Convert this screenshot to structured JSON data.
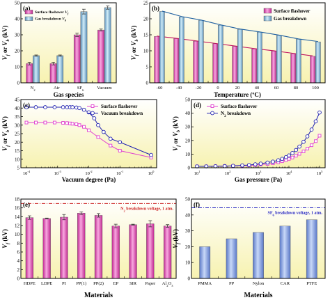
{
  "chart_data": [
    {
      "id": "a",
      "panel_label": "(a)",
      "type": "bar",
      "xlabel": "Gas species",
      "ylabel": "V_f or V_b (kV)",
      "ylim": [
        0,
        50
      ],
      "yticks": [
        0,
        10,
        20,
        30,
        40,
        50
      ],
      "categories": [
        "N₂",
        "Air",
        "SF₆",
        "Vacuum"
      ],
      "series": [
        {
          "name": "Surface flashover V_f",
          "values": [
            12,
            12,
            30,
            33
          ],
          "errors": [
            0.8,
            0.8,
            1.0,
            0.6
          ],
          "color": "#e060b8"
        },
        {
          "name": "Gas breakdown V_b",
          "values": [
            17,
            17,
            44.5,
            47
          ],
          "errors": [
            0.4,
            0.4,
            1.5,
            1.0
          ],
          "color": "#7fb8d8"
        }
      ],
      "legend": "top-left",
      "background": "yellow-gradient"
    },
    {
      "id": "b",
      "panel_label": "(b)",
      "type": "bar",
      "xlabel": "Temperature (ºC)",
      "ylabel": "V_f or V_b (kV)",
      "ylim": [
        0,
        25
      ],
      "yticks": [
        0,
        5,
        10,
        15,
        20,
        25
      ],
      "categories": [
        "-60",
        "-40",
        "-20",
        "0",
        "20",
        "40",
        "60",
        "80",
        "100"
      ],
      "series": [
        {
          "name": "Surface flashover",
          "values": [
            14.5,
            13.8,
            13.0,
            12.2,
            11.4,
            10.6,
            9.9,
            9.1,
            8.3
          ],
          "color": "#e060b8",
          "trend_line": true
        },
        {
          "name": "Gas breakdown",
          "values": [
            22.3,
            20.6,
            19.5,
            18.0,
            16.7,
            15.8,
            14.8,
            13.6,
            12.8
          ],
          "color": "#7fb8d8",
          "trend_line": true
        }
      ],
      "legend": "top-right",
      "background": "yellow-gradient"
    },
    {
      "id": "c",
      "panel_label": "(c)",
      "type": "line",
      "xscale": "log",
      "xlabel": "Vacuum degree (Pa)",
      "ylabel": "V_f or V_b (kV)",
      "xlim": [
        0.0001,
        1
      ],
      "ylim": [
        5,
        45
      ],
      "yticks": [
        5,
        10,
        15,
        20,
        25,
        30,
        35,
        40,
        45
      ],
      "xtick_labels": [
        "10⁻⁴",
        "10⁻³",
        "10⁻²",
        "10⁻¹",
        "10⁰"
      ],
      "series": [
        {
          "name": "Surface flashover",
          "marker": "square",
          "color": "#e040d0",
          "x": [
            0.0001,
            0.0002,
            0.0004,
            0.0008,
            0.0015,
            0.002,
            0.0025,
            0.003,
            0.004,
            0.005,
            0.007,
            0.01,
            0.02,
            0.05,
            0.1,
            1
          ],
          "y": [
            31.5,
            31.5,
            31.5,
            31.5,
            31.3,
            31.2,
            31.0,
            30.8,
            30.5,
            30.0,
            29.0,
            27.0,
            23.0,
            18.0,
            15.0,
            11.0
          ]
        },
        {
          "name": "Vacuum breakdown",
          "marker": "circle",
          "color": "#2020b0",
          "x": [
            0.0001,
            0.0002,
            0.0004,
            0.0008,
            0.0015,
            0.002,
            0.0025,
            0.003,
            0.004,
            0.005,
            0.007,
            0.01,
            0.015,
            0.02,
            0.03,
            0.05,
            0.1,
            1
          ],
          "y": [
            40.5,
            40.5,
            40.5,
            40.5,
            40.5,
            40.5,
            40.5,
            40.5,
            40.3,
            40.0,
            39.0,
            37.5,
            34.0,
            30.0,
            26.0,
            22.0,
            20.0,
            12.5
          ]
        }
      ],
      "legend": "top-right",
      "background": "yellow-gradient"
    },
    {
      "id": "d",
      "panel_label": "(d)",
      "type": "line",
      "xscale": "log",
      "xlabel": "Gas pressure (Pa)",
      "ylabel": "V_f or V_b (kV)",
      "xlim": [
        10,
        100000
      ],
      "ylim": [
        0,
        50
      ],
      "yticks": [
        0,
        10,
        20,
        30,
        40,
        50
      ],
      "xtick_labels": [
        "10¹",
        "10²",
        "10³",
        "10⁴",
        "10⁵"
      ],
      "series": [
        {
          "name": "Surface flashover",
          "marker": "square",
          "color": "#e040d0",
          "x": [
            10,
            20,
            40,
            80,
            150,
            300,
            500,
            800,
            1200,
            2000,
            3000,
            4500,
            6000,
            8000,
            10000,
            13000,
            17000,
            22000,
            30000,
            40000,
            55000,
            75000,
            100000
          ],
          "y": [
            1,
            1,
            1.1,
            1.2,
            1.3,
            1.5,
            1.7,
            2.0,
            2.3,
            2.8,
            3.3,
            4.0,
            4.8,
            5.6,
            6.5,
            7.5,
            8.8,
            10.2,
            12.0,
            14.0,
            16.5,
            19.5,
            23.5
          ]
        },
        {
          "name": "N₂ breakdown",
          "marker": "circle",
          "color": "#2020b0",
          "x": [
            10,
            20,
            40,
            80,
            150,
            300,
            500,
            800,
            1200,
            2000,
            3000,
            4500,
            6000,
            8000,
            10000,
            13000,
            17000,
            22000,
            30000,
            40000,
            55000,
            75000,
            100000
          ],
          "y": [
            1,
            1,
            1.1,
            1.2,
            1.4,
            1.7,
            2.0,
            2.5,
            3.0,
            3.8,
            4.5,
            5.5,
            6.5,
            7.8,
            9.0,
            10.8,
            13.0,
            15.5,
            19.0,
            23.0,
            28.0,
            34.0,
            40.5
          ]
        }
      ],
      "legend": "top-left",
      "background": "yellow-gradient"
    },
    {
      "id": "e",
      "panel_label": "(e)",
      "type": "bar",
      "xlabel": "Materials",
      "ylabel": "V_f (kV)",
      "ylim": [
        0,
        18
      ],
      "yticks": [
        0,
        2,
        4,
        6,
        8,
        10,
        12,
        14,
        16,
        18
      ],
      "categories": [
        "HDPE",
        "LDPE",
        "PI",
        "PP(1)",
        "PP(2)",
        "EP",
        "SIR",
        "Paper",
        "Al₂O₃"
      ],
      "series": [
        {
          "name": "V_f",
          "values": [
            13.8,
            13.6,
            13.9,
            14.8,
            14.3,
            11.9,
            12.2,
            12.4,
            11.9
          ],
          "errors": [
            0.4,
            0.1,
            0.6,
            0.3,
            0.4,
            0.4,
            0.1,
            0.7,
            0.3
          ],
          "color": "#e060b8"
        }
      ],
      "reference_line": {
        "value": 17,
        "label": "N₂ breakdown voltage, 1 atm.",
        "color": "#cc2020"
      },
      "background": "yellow-gradient"
    },
    {
      "id": "f",
      "panel_label": "(f)",
      "type": "bar",
      "xlabel": "Materials",
      "ylabel": "V_f (kV)",
      "ylim": [
        0,
        50
      ],
      "yticks": [
        0,
        10,
        20,
        30,
        40,
        50
      ],
      "categories": [
        "PMMA",
        "PP",
        "Nylon",
        "CAR",
        "PTFE"
      ],
      "series": [
        {
          "name": "V_f",
          "values": [
            20,
            25,
            29,
            33,
            37
          ],
          "color": "#7f9ee0"
        }
      ],
      "reference_line": {
        "value": 44.5,
        "label": "SF₆ breakdown voltage, 1 atm.",
        "color": "#2020c0"
      },
      "background": "yellow-gradient"
    }
  ]
}
